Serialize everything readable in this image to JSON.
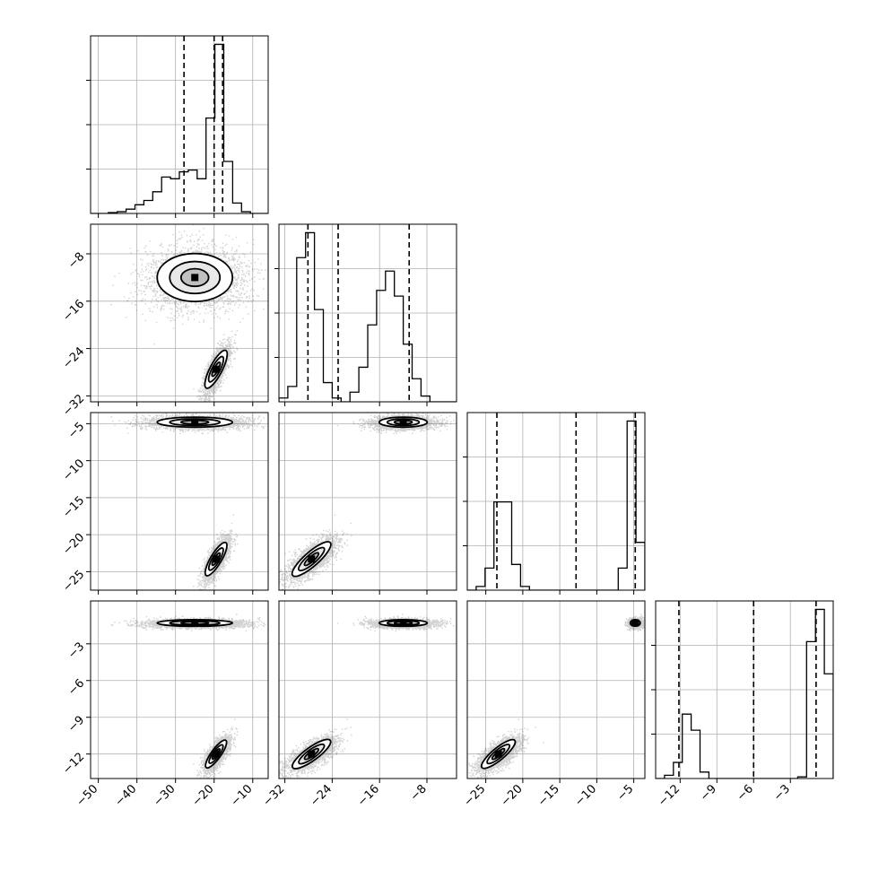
{
  "chart_data": {
    "type": "corner",
    "title": "",
    "dimensions": 4,
    "axes": [
      {
        "range": [
          -52,
          -6
        ],
        "ticks": [
          -50,
          -40,
          -30,
          -20,
          -10
        ],
        "tick_labels": [
          "−50",
          "−40",
          "−30",
          "−20",
          "−10"
        ]
      },
      {
        "range": [
          -33,
          -3
        ],
        "ticks": [
          -32,
          -24,
          -16,
          -8
        ],
        "tick_labels": [
          "−32",
          "−24",
          "−16",
          "−8"
        ]
      },
      {
        "range": [
          -27.5,
          -3.5
        ],
        "ticks": [
          -25,
          -20,
          -15,
          -10,
          -5
        ],
        "tick_labels": [
          "−25",
          "−20",
          "−15",
          "−10",
          "−5"
        ]
      },
      {
        "range": [
          -14,
          0.5
        ],
        "ticks": [
          -12,
          -9,
          -6,
          -3
        ],
        "tick_labels": [
          "−12",
          "−9",
          "−6",
          "−3"
        ]
      }
    ],
    "grid": true,
    "colors": {
      "samples": "#000000",
      "line": "#000000",
      "grid": "#b0b0b0"
    },
    "histograms": [
      {
        "param": 0,
        "bins": [
          -52,
          -49.7,
          -47.4,
          -45.1,
          -42.8,
          -40.5,
          -38.2,
          -35.9,
          -33.6,
          -31.3,
          -29,
          -26.7,
          -24.4,
          -22.1,
          -19.8,
          -17.5,
          -15.2,
          -12.9,
          -10.6,
          -8.3,
          -6
        ],
        "counts": [
          0,
          0,
          1,
          2,
          5,
          10,
          15,
          25,
          42,
          40,
          48,
          50,
          40,
          110,
          195,
          60,
          12,
          2,
          0,
          0
        ],
        "quantiles": [
          -27.8,
          -20.0,
          -17.8
        ]
      },
      {
        "param": 1,
        "bins": [
          -33,
          -31.5,
          -30,
          -28.5,
          -27,
          -25.5,
          -24,
          -22.5,
          -21,
          -19.5,
          -18,
          -16.5,
          -15,
          -13.5,
          -12,
          -10.5,
          -9,
          -7.5,
          -6,
          -4.5,
          -3
        ],
        "counts": [
          2,
          8,
          75,
          88,
          48,
          10,
          2,
          0,
          5,
          18,
          40,
          58,
          68,
          55,
          30,
          12,
          3,
          0,
          0,
          0
        ],
        "quantiles": [
          -28.1,
          -23.0,
          -11.0
        ]
      },
      {
        "param": 2,
        "bins": [
          -27.5,
          -26.3,
          -25.1,
          -23.9,
          -22.7,
          -21.5,
          -20.3,
          -19.1,
          -17.9,
          -16.7,
          -15.5,
          -14.3,
          -13.1,
          -11.9,
          -10.7,
          -9.5,
          -8.3,
          -7.1,
          -5.9,
          -4.7,
          -3.5
        ],
        "counts": [
          0,
          2,
          12,
          48,
          48,
          14,
          2,
          0,
          0,
          0,
          0,
          0,
          0,
          0,
          0,
          0,
          0,
          12,
          92,
          26
        ],
        "quantiles": [
          -23.5,
          -12.8,
          -4.8
        ]
      },
      {
        "param": 3,
        "bins": [
          -14,
          -13.275,
          -12.55,
          -11.825,
          -11.1,
          -10.375,
          -9.65,
          -8.925,
          -8.2,
          -7.475,
          -6.75,
          -6.025,
          -5.3,
          -4.575,
          -3.85,
          -3.125,
          -2.4,
          -1.675,
          -0.95,
          -0.225,
          0.5
        ],
        "counts": [
          0,
          2,
          10,
          40,
          30,
          4,
          0,
          0,
          0,
          0,
          0,
          0,
          0,
          0,
          0,
          0,
          1,
          85,
          105,
          65
        ],
        "quantiles": [
          -12.1,
          -6.0,
          -0.9
        ]
      }
    ],
    "modes": [
      {
        "weight": 0.5,
        "mean": [
          -25,
          -12,
          -4.8,
          -1.3
        ],
        "sd": [
          6.5,
          2.7,
          0.45,
          0.18
        ]
      },
      {
        "weight": 0.5,
        "mean": [
          -19.5,
          -27.5,
          -23.3,
          -12
        ],
        "sd": [
          1.6,
          2.0,
          1.4,
          0.7
        ],
        "corr": 0.85
      }
    ]
  }
}
